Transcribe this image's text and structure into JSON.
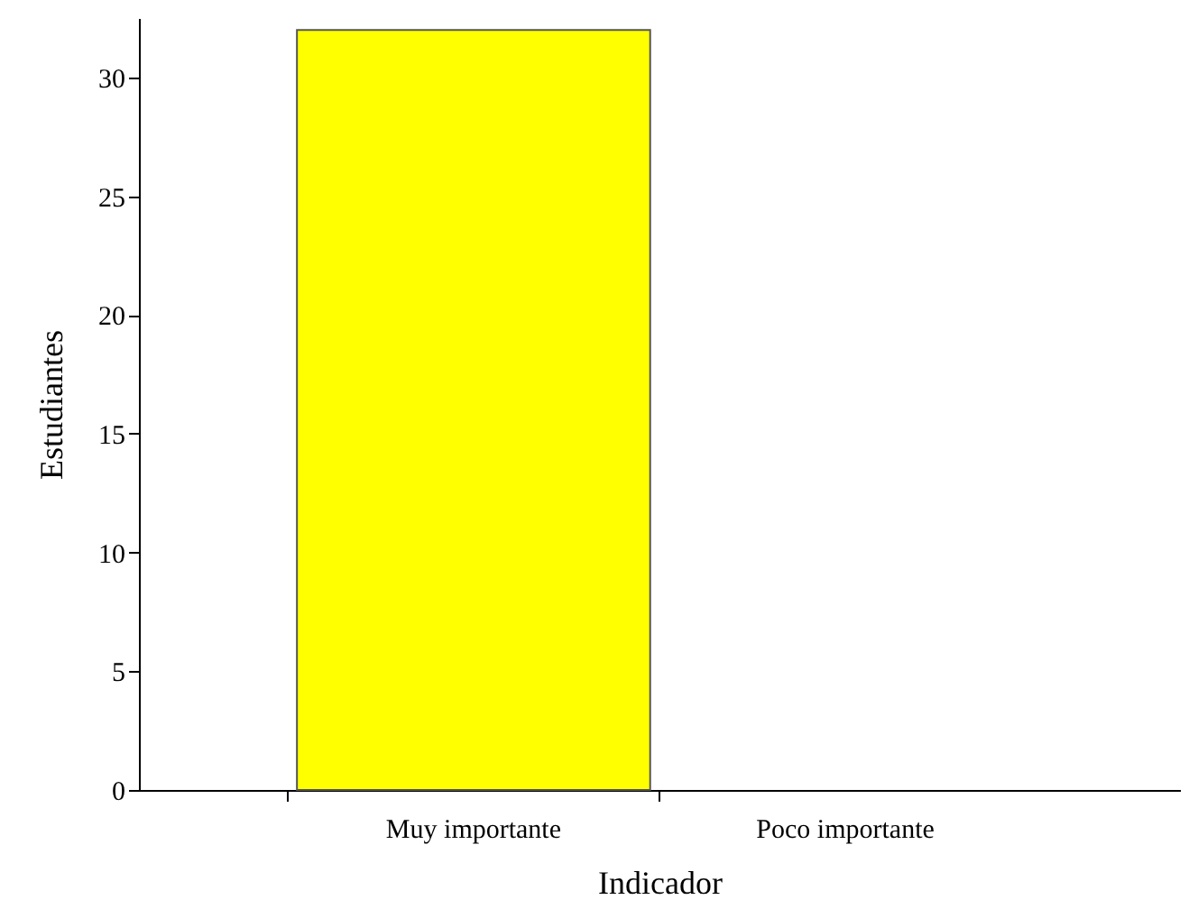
{
  "chart_data": {
    "type": "bar",
    "xlabel": "Indicador",
    "ylabel": "Estudiantes",
    "categories": [
      "Muy importante",
      "Poco importante"
    ],
    "values": [
      32,
      0
    ],
    "color": "#ffff00",
    "ylim": [
      0,
      32.5
    ],
    "yticks": [
      0,
      5,
      10,
      15,
      20,
      25,
      30
    ],
    "grid": false
  }
}
